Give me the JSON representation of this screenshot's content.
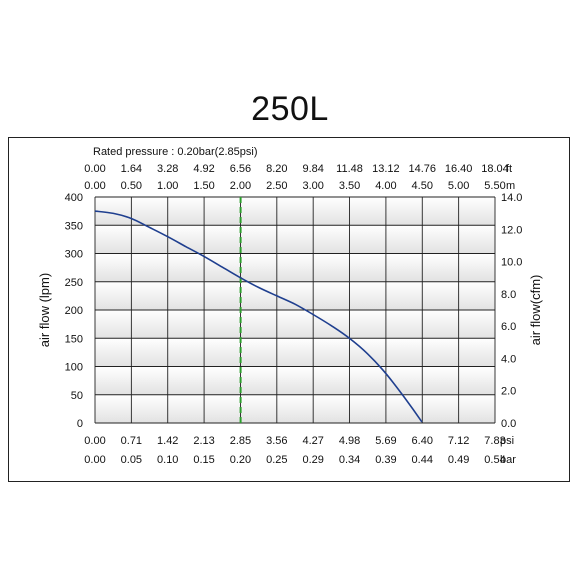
{
  "chart_data": {
    "type": "line",
    "title": "250L",
    "subtitle": "Rated pressure : 0.20bar(2.85psi)",
    "ylabel": "air flow (lpm)",
    "ylabel_right": "air flow(cfm)",
    "ylim": [
      0,
      400
    ],
    "ylim_right": [
      0,
      14
    ],
    "xlim_psi": [
      0,
      7.83
    ],
    "y_ticks": [
      "0",
      "50",
      "100",
      "150",
      "200",
      "250",
      "300",
      "350",
      "400"
    ],
    "y_ticks_right": [
      "0.0",
      "2.0",
      "4.0",
      "6.0",
      "8.0",
      "10.0",
      "12.0",
      "14.0"
    ],
    "x_ticks_psi": [
      "0.00",
      "0.71",
      "1.42",
      "2.13",
      "2.85",
      "3.56",
      "4.27",
      "4.98",
      "5.69",
      "6.40",
      "7.12",
      "7.83"
    ],
    "x_ticks_bar": [
      "0.00",
      "0.05",
      "0.10",
      "0.15",
      "0.20",
      "0.25",
      "0.29",
      "0.34",
      "0.39",
      "0.44",
      "0.49",
      "0.54"
    ],
    "x_ticks_ft": [
      "0.00",
      "1.64",
      "3.28",
      "4.92",
      "6.56",
      "8.20",
      "9.84",
      "11.48",
      "13.12",
      "14.76",
      "16.40",
      "18.04"
    ],
    "x_ticks_m": [
      "0.00",
      "0.50",
      "1.00",
      "1.50",
      "2.00",
      "2.50",
      "3.00",
      "3.50",
      "4.00",
      "4.50",
      "5.00",
      "5.50"
    ],
    "unit_psi": "psi",
    "unit_bar": "bar",
    "unit_ft": "ft",
    "unit_m": "m",
    "rated_pressure_psi": 2.85,
    "series": [
      {
        "x_psi": [
          0.0,
          0.36,
          0.71,
          1.07,
          1.42,
          1.78,
          2.13,
          2.49,
          2.85,
          3.2,
          3.56,
          3.92,
          4.27,
          4.63,
          4.98,
          5.34,
          5.69,
          6.05,
          6.4
        ],
        "y_lpm": [
          375,
          371,
          362,
          346,
          330,
          312,
          295,
          276,
          257,
          240,
          225,
          210,
          192,
          172,
          150,
          122,
          88,
          46,
          2
        ],
        "color": "#1f3f8f"
      }
    ],
    "colors": {
      "curve": "#1f3f8f",
      "rated_line": "#2ca02c",
      "band_light": "#ffffff",
      "band_dark": "#e2e2e2"
    }
  }
}
